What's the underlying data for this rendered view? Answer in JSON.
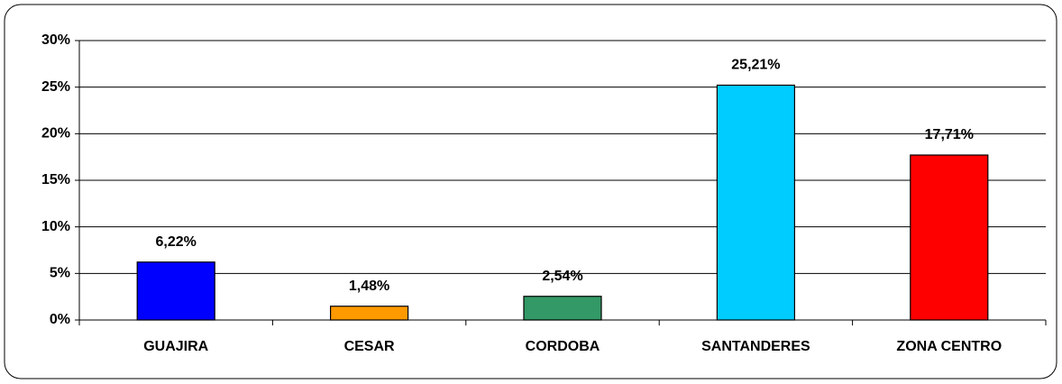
{
  "chart_data": {
    "type": "bar",
    "categories": [
      "GUAJIRA",
      "CESAR",
      "CORDOBA",
      "SANTANDERES",
      "ZONA CENTRO"
    ],
    "values": [
      6.22,
      1.48,
      2.54,
      25.21,
      17.71
    ],
    "value_labels": [
      "6,22%",
      "1,48%",
      "2,54%",
      "25,21%",
      "17,71%"
    ],
    "colors": [
      "#0000ff",
      "#ff9900",
      "#339966",
      "#00ccff",
      "#ff0000"
    ],
    "ylim": [
      0,
      30
    ],
    "yticks": [
      {
        "value": 0,
        "label": "0%"
      },
      {
        "value": 5,
        "label": "5%"
      },
      {
        "value": 10,
        "label": "10%"
      },
      {
        "value": 15,
        "label": "15%"
      },
      {
        "value": 20,
        "label": "20%"
      },
      {
        "value": 25,
        "label": "25%"
      },
      {
        "value": 30,
        "label": "30%"
      }
    ],
    "grid": true
  }
}
